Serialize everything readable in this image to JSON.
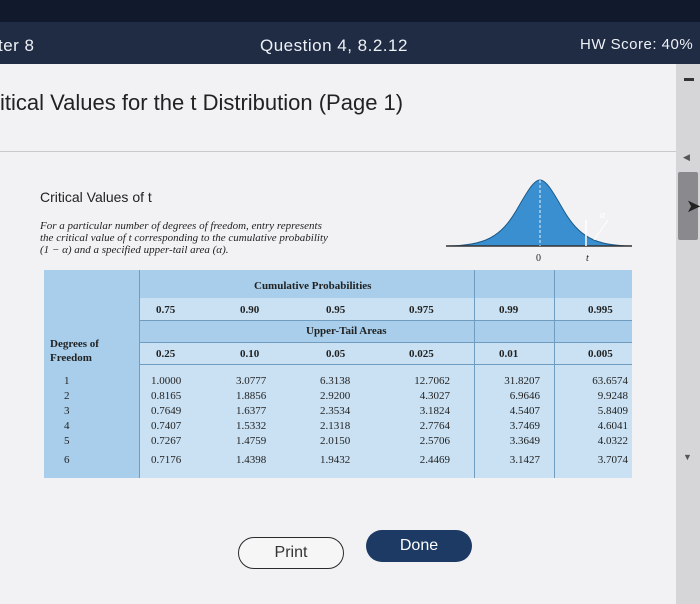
{
  "header": {
    "chapter": "ter 8",
    "question": "Question 4, 8.2.12",
    "score": "HW Score: 40%"
  },
  "page": {
    "title": "itical Values for the t Distribution (Page 1)"
  },
  "card": {
    "heading": "Critical Values of t",
    "description": [
      "For a particular number of degrees of freedom, entry represents",
      "the critical value of t corresponding to the cumulative probability",
      "(1 − α) and a specified upper-tail area (α)."
    ]
  },
  "curve": {
    "zero_label": "0",
    "t_label": "t",
    "alpha_label": "α",
    "fill_color": "#3a8fd0"
  },
  "table": {
    "cumulative_header": "Cumulative Probabilities",
    "uppertail_header": "Upper-Tail Areas",
    "dof_header_line1": "Degrees of",
    "dof_header_line2": "Freedom",
    "cumulative": [
      "0.75",
      "0.90",
      "0.95",
      "0.975",
      "0.99",
      "0.995"
    ],
    "uppertail": [
      "0.25",
      "0.10",
      "0.05",
      "0.025",
      "0.01",
      "0.005"
    ],
    "dof": [
      "1",
      "2",
      "3",
      "4",
      "5",
      "6"
    ],
    "columns": [
      [
        "1.0000",
        "0.8165",
        "0.7649",
        "0.7407",
        "0.7267",
        "0.7176"
      ],
      [
        "3.0777",
        "1.8856",
        "1.6377",
        "1.5332",
        "1.4759",
        "1.4398"
      ],
      [
        "6.3138",
        "2.9200",
        "2.3534",
        "2.1318",
        "2.0150",
        "1.9432"
      ],
      [
        "12.7062",
        "4.3027",
        "3.1824",
        "2.7764",
        "2.5706",
        "2.4469"
      ],
      [
        "31.8207",
        "6.9646",
        "4.5407",
        "3.7469",
        "3.3649",
        "3.1427"
      ],
      [
        "63.6574",
        "9.9248",
        "5.8409",
        "4.6041",
        "4.0322",
        "3.7074"
      ]
    ],
    "color_dark": "#a8ceeb",
    "color_light": "#c9e1f3"
  },
  "buttons": {
    "print": "Print",
    "done": "Done"
  },
  "colors": {
    "header_bg": "#1f2c44",
    "done_bg": "#1c3a63"
  }
}
